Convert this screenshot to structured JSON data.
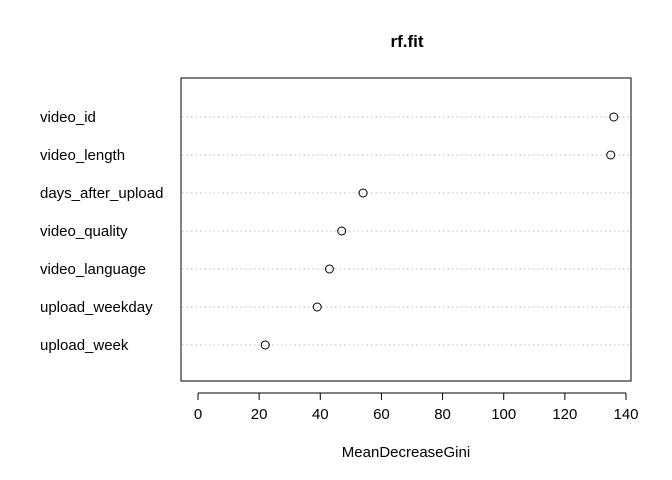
{
  "chart_data": {
    "type": "scatter",
    "title": "rf.fit",
    "xlabel": "MeanDecreaseGini",
    "ylabel": "",
    "xlim": [
      -5.5,
      142
    ],
    "x_ticks": [
      0,
      20,
      40,
      60,
      80,
      100,
      120,
      140
    ],
    "grid": "dotted horizontal lines per variable",
    "categories": [
      "video_id",
      "video_length",
      "days_after_upload",
      "video_quality",
      "video_language",
      "upload_weekday",
      "upload_week"
    ],
    "values": [
      136,
      135,
      54,
      47,
      43,
      39,
      22
    ]
  }
}
